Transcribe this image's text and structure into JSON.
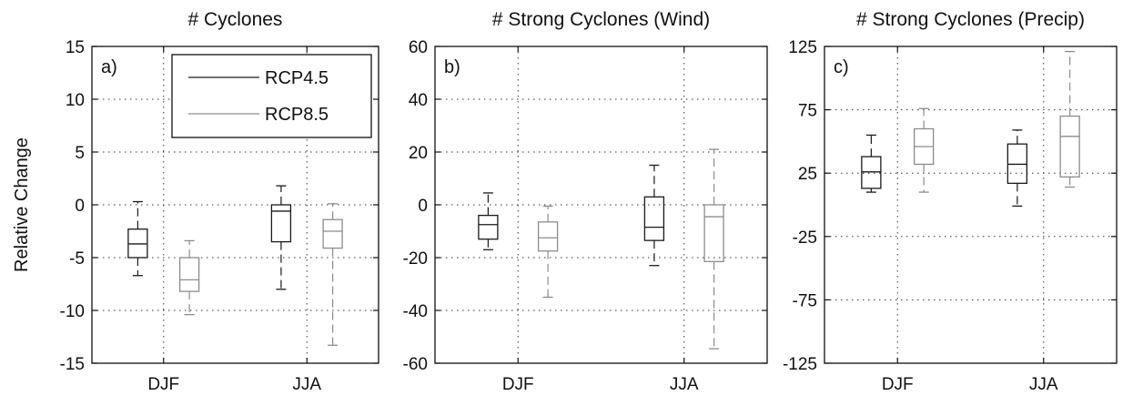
{
  "y_axis_label": "Relative Change",
  "legend": {
    "entries": [
      {
        "label": "RCP4.5",
        "color": "#1a1a1a"
      },
      {
        "label": "RCP8.5",
        "color": "#8c8c8c"
      }
    ]
  },
  "colors": {
    "RCP4.5": "#1a1a1a",
    "RCP8.5": "#8c8c8c"
  },
  "chart_data": [
    {
      "type": "box",
      "panel_label": "a)",
      "title": "# Cyclones",
      "categories": [
        "DJF",
        "JJA"
      ],
      "ylim": [
        -15,
        15
      ],
      "yticks": [
        -15,
        -10,
        -5,
        0,
        5,
        10,
        15
      ],
      "ytick_labels": [
        "-15",
        "-10",
        "-5",
        "0",
        "5",
        "10",
        "15"
      ],
      "grid": true,
      "legend_position": "top-right",
      "series": [
        {
          "name": "RCP4.5",
          "boxes": [
            {
              "category": "DJF",
              "min": -6.7,
              "q1": -5.0,
              "median": -3.7,
              "q3": -2.3,
              "max": 0.3
            },
            {
              "category": "JJA",
              "min": -8.0,
              "q1": -3.5,
              "median": -0.6,
              "q3": 0.0,
              "max": 1.8
            }
          ]
        },
        {
          "name": "RCP8.5",
          "boxes": [
            {
              "category": "DJF",
              "min": -10.4,
              "q1": -8.2,
              "median": -7.1,
              "q3": -5.0,
              "max": -3.4
            },
            {
              "category": "JJA",
              "min": -13.3,
              "q1": -4.1,
              "median": -2.5,
              "q3": -1.4,
              "max": 0.1
            }
          ]
        }
      ]
    },
    {
      "type": "box",
      "panel_label": "b)",
      "title": "# Strong Cyclones (Wind)",
      "categories": [
        "DJF",
        "JJA"
      ],
      "ylim": [
        -60,
        60
      ],
      "yticks": [
        -60,
        -40,
        -20,
        0,
        20,
        40,
        60
      ],
      "ytick_labels": [
        "-60",
        "-40",
        "-20",
        "0",
        "20",
        "40",
        "60"
      ],
      "grid": true,
      "series": [
        {
          "name": "RCP4.5",
          "boxes": [
            {
              "category": "DJF",
              "min": -17,
              "q1": -13,
              "median": -7.5,
              "q3": -4,
              "max": 4.5
            },
            {
              "category": "JJA",
              "min": -23,
              "q1": -13.5,
              "median": -8.5,
              "q3": 3,
              "max": 15
            }
          ]
        },
        {
          "name": "RCP8.5",
          "boxes": [
            {
              "category": "DJF",
              "min": -35,
              "q1": -17.5,
              "median": -12.5,
              "q3": -6.5,
              "max": -0.5
            },
            {
              "category": "JJA",
              "min": -54.5,
              "q1": -21.5,
              "median": -4.5,
              "q3": 0,
              "max": 21
            }
          ]
        }
      ]
    },
    {
      "type": "box",
      "panel_label": "c)",
      "title": "# Strong Cyclones (Precip)",
      "categories": [
        "DJF",
        "JJA"
      ],
      "ylim": [
        -125,
        125
      ],
      "yticks": [
        -125,
        -75,
        -25,
        25,
        75,
        125
      ],
      "ytick_labels": [
        "-125",
        "-75",
        "-25",
        "25",
        "75",
        "125"
      ],
      "grid": true,
      "series": [
        {
          "name": "RCP4.5",
          "boxes": [
            {
              "category": "DJF",
              "min": 10,
              "q1": 13,
              "median": 26,
              "q3": 38,
              "max": 55
            },
            {
              "category": "JJA",
              "min": -1,
              "q1": 17,
              "median": 32,
              "q3": 48,
              "max": 59
            }
          ]
        },
        {
          "name": "RCP8.5",
          "boxes": [
            {
              "category": "DJF",
              "min": 10,
              "q1": 32,
              "median": 46,
              "q3": 60,
              "max": 76
            },
            {
              "category": "JJA",
              "min": 14,
              "q1": 22,
              "median": 54,
              "q3": 70,
              "max": 121
            }
          ]
        }
      ]
    }
  ]
}
